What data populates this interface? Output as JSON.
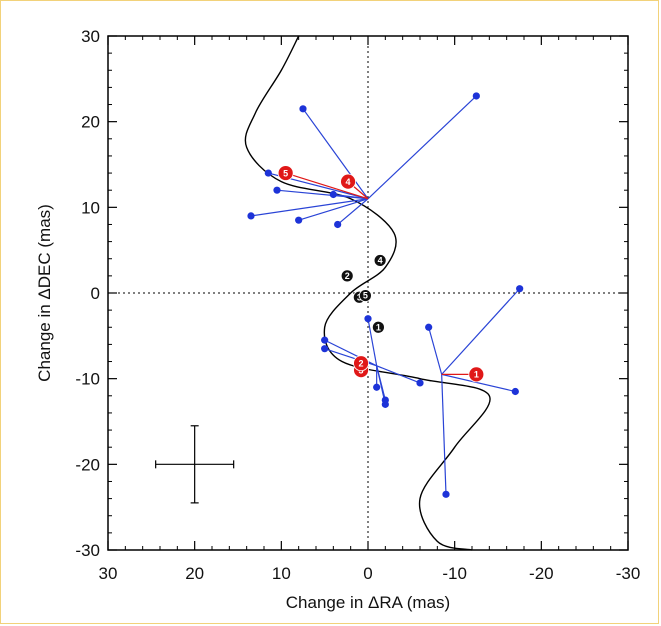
{
  "chart_data": {
    "type": "scatter",
    "title": "",
    "xlabel": "Change in ΔRA (mas)",
    "ylabel": "Change in ΔDEC (mas)",
    "xlim": [
      30,
      -30
    ],
    "ylim": [
      -30,
      30
    ],
    "x_ticks": [
      30,
      20,
      10,
      0,
      -10,
      -20,
      -30
    ],
    "y_ticks": [
      30,
      20,
      10,
      0,
      -10,
      -20,
      -30
    ],
    "reference_lines": {
      "x": 0,
      "y": 0,
      "style": "dotted"
    },
    "model_orbit_curve": [
      [
        8,
        30
      ],
      [
        10,
        26
      ],
      [
        13,
        21
      ],
      [
        14,
        17
      ],
      [
        10,
        13
      ],
      [
        2,
        11
      ],
      [
        -3,
        7
      ],
      [
        -2,
        3
      ],
      [
        2,
        0
      ],
      [
        5,
        -4
      ],
      [
        3,
        -8
      ],
      [
        -6,
        -10
      ],
      [
        -14,
        -12
      ],
      [
        -10,
        -18
      ],
      [
        -6,
        -24
      ],
      [
        -8,
        -29
      ],
      [
        -12,
        -30
      ]
    ],
    "anchor_points": [
      {
        "x": 0,
        "y": 11,
        "spokes": [
          [
            -12.5,
            23
          ],
          [
            7.5,
            21.5
          ],
          [
            11.5,
            14
          ],
          [
            10.5,
            12
          ],
          [
            13.5,
            9
          ],
          [
            8,
            8.5
          ],
          [
            3.5,
            8
          ],
          [
            4,
            11.5
          ]
        ]
      },
      {
        "x": -1,
        "y": -8.5,
        "spokes": [
          [
            0,
            -3
          ],
          [
            5,
            -5.5
          ],
          [
            5,
            -6.5
          ],
          [
            -1,
            -11
          ],
          [
            -2,
            -12.5
          ],
          [
            -2,
            -13
          ],
          [
            -6,
            -10.5
          ]
        ]
      },
      {
        "x": -8.5,
        "y": -9.5,
        "spokes": [
          [
            -7,
            -4
          ],
          [
            -17.5,
            0.5
          ],
          [
            -17,
            -11.5
          ],
          [
            -9,
            -23.5
          ]
        ]
      }
    ],
    "markers_red": [
      {
        "label": "1",
        "x": -12.5,
        "y": -9.5
      },
      {
        "label": "3",
        "x": 0.8,
        "y": -9
      },
      {
        "label": "2",
        "x": 0.8,
        "y": -8.2
      },
      {
        "label": "4",
        "x": 2.3,
        "y": 13
      },
      {
        "label": "5",
        "x": 9.5,
        "y": 14
      }
    ],
    "markers_black": [
      {
        "label": "1",
        "x": -1.2,
        "y": -4
      },
      {
        "label": "2",
        "x": 2.4,
        "y": 2
      },
      {
        "label": "3",
        "x": 1,
        "y": -0.5
      },
      {
        "label": "5",
        "x": 0.3,
        "y": -0.3
      },
      {
        "label": "4",
        "x": -1.4,
        "y": 3.8
      }
    ],
    "error_bar": {
      "x": 20,
      "y": -20,
      "x_err": 4.5,
      "y_err": 4.5
    },
    "colors": {
      "curve": "#000000",
      "spokes": "#2a44d6",
      "points": "#1d33d8",
      "red_marker": "#e01818",
      "black_marker": "#111111",
      "red_line": "#e01818"
    }
  }
}
